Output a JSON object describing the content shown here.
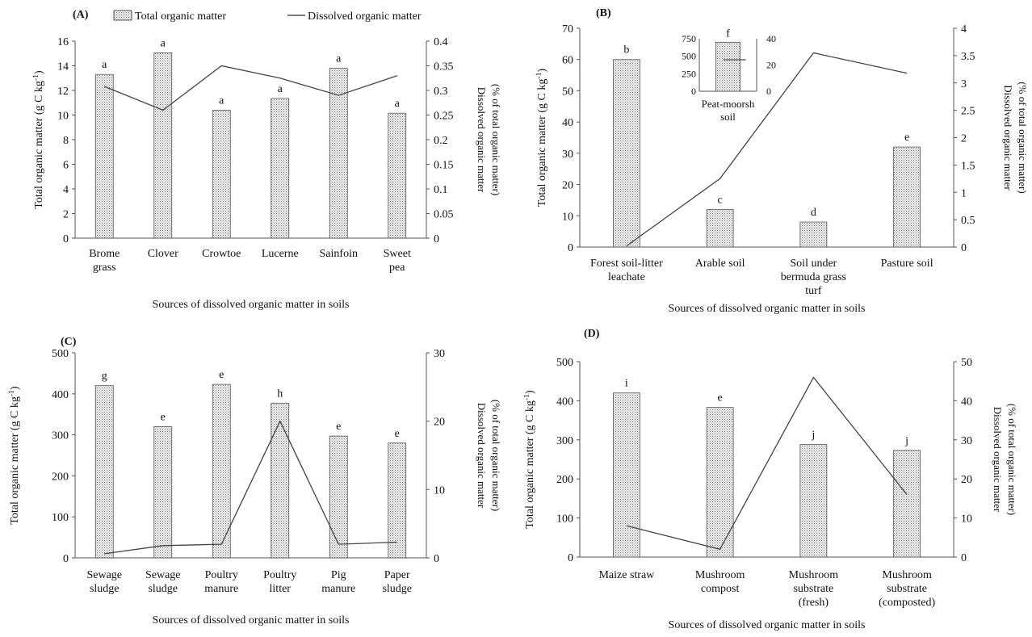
{
  "legend": {
    "bar_label": "Total organic matter",
    "line_label": "Dissolved organic matter"
  },
  "chart_data": [
    {
      "type": "bar",
      "panel": "(A)",
      "categories": [
        [
          "Brome",
          "grass"
        ],
        [
          "Clover"
        ],
        [
          "Crowtoe"
        ],
        [
          "Lucerne"
        ],
        [
          "Sainfoin"
        ],
        [
          "Sweet",
          "pea"
        ]
      ],
      "values": [
        13.3,
        15.05,
        10.4,
        11.35,
        13.8,
        10.15
      ],
      "letters": [
        "a",
        "a",
        "a",
        "a",
        "a",
        "a"
      ],
      "line_values": [
        0.308,
        0.26,
        0.35,
        0.325,
        0.29,
        0.33
      ],
      "ylabel_left": "Total organic matter (g C kg-1)",
      "ylabel_right": [
        "Dissolved organic matter",
        "(% of total organic matter)"
      ],
      "xlabel": "Sources of dissolved organic matter in soils",
      "ylim_left": [
        0,
        16
      ],
      "yticks_left": [
        "0",
        "2",
        "4",
        "6",
        "8",
        "10",
        "12",
        "14",
        "16"
      ],
      "ylim_right": [
        0,
        0.4
      ],
      "yticks_right": [
        "0",
        "0.05",
        "0.1",
        "0.15",
        "0.2",
        "0.25",
        "0.3",
        "0.35",
        "0.4"
      ]
    },
    {
      "type": "bar",
      "panel": "(B)",
      "categories": [
        [
          "Forest soil-litter",
          "leachate"
        ],
        [
          "Arable soil"
        ],
        [
          "Soil under",
          "bermuda grass",
          "turf"
        ],
        [
          "Pasture soil"
        ]
      ],
      "values": [
        60,
        12,
        8,
        32
      ],
      "letters": [
        "b",
        "c",
        "d",
        "e"
      ],
      "line_values": [
        0.02,
        1.25,
        3.55,
        3.18
      ],
      "ylabel_left": "Total organic matter (g C kg-1)",
      "ylabel_right": [
        "Dissolved organic matter",
        "(% of total organic matter)"
      ],
      "xlabel": "Sources of dissolved organic matter in soils",
      "ylim_left": [
        0,
        70
      ],
      "yticks_left": [
        "0",
        "10",
        "20",
        "30",
        "40",
        "50",
        "60",
        "70"
      ],
      "ylim_right": [
        0,
        4
      ],
      "yticks_right": [
        "0",
        "0.5",
        "1",
        "1.5",
        "2",
        "2.5",
        "3",
        "3.5",
        "4"
      ],
      "inset": {
        "category": [
          "Peat-moorsh",
          "soil"
        ],
        "value": 700,
        "letter": "f",
        "line_value": 24,
        "ylim_left": [
          0,
          750
        ],
        "yticks_left": [
          "0",
          "250",
          "500",
          "750"
        ],
        "ylim_right": [
          0,
          40
        ],
        "yticks_right": [
          "0",
          "20",
          "40"
        ]
      }
    },
    {
      "type": "bar",
      "panel": "(C)",
      "categories": [
        [
          "Sewage",
          "sludge"
        ],
        [
          "Sewage",
          "sludge"
        ],
        [
          "Poultry",
          "manure"
        ],
        [
          "Poultry",
          "litter"
        ],
        [
          "Pig",
          "manure"
        ],
        [
          "Paper",
          "sludge"
        ]
      ],
      "values": [
        420,
        320,
        423,
        377,
        297,
        280
      ],
      "letters": [
        "g",
        "e",
        "e",
        "h",
        "e",
        "e"
      ],
      "line_values": [
        0.6,
        1.8,
        2.0,
        20.0,
        2.0,
        2.3
      ],
      "ylabel_left": "Total organic matter (g C kg-1)",
      "ylabel_right": [
        "Dissolved organic matter",
        "(% of total organic matter)"
      ],
      "xlabel": "Sources of dissolved organic matter in soils",
      "ylim_left": [
        0,
        500
      ],
      "yticks_left": [
        "0",
        "100",
        "200",
        "300",
        "400",
        "500"
      ],
      "ylim_right": [
        0,
        30
      ],
      "yticks_right": [
        "0",
        "10",
        "20",
        "30"
      ]
    },
    {
      "type": "bar",
      "panel": "(D)",
      "categories": [
        [
          "Maize straw"
        ],
        [
          "Mushroom",
          "compost"
        ],
        [
          "Mushroom",
          "substrate",
          "(fresh)"
        ],
        [
          "Mushroom",
          "substrate",
          "(composted)"
        ]
      ],
      "values": [
        420,
        383,
        288,
        273
      ],
      "letters": [
        "i",
        "e",
        "j",
        "j"
      ],
      "line_values": [
        8,
        2,
        46,
        16
      ],
      "ylabel_left": "Total organic matter (g C kg-1)",
      "ylabel_right": [
        "Dissolved organic matter",
        "(% of total organic matter)"
      ],
      "xlabel": "Sources of dissolved organic matter in soils",
      "ylim_left": [
        0,
        500
      ],
      "yticks_left": [
        "0",
        "100",
        "200",
        "300",
        "400",
        "500"
      ],
      "ylim_right": [
        0,
        50
      ],
      "yticks_right": [
        "0",
        "10",
        "20",
        "30",
        "40",
        "50"
      ]
    }
  ]
}
